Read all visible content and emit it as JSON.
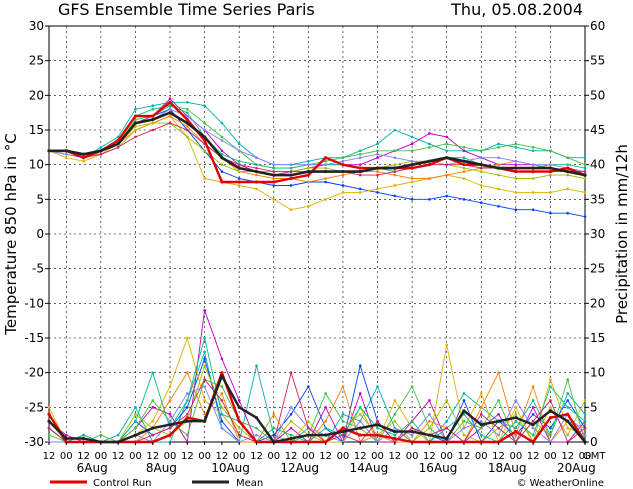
{
  "chart_data": {
    "type": "line",
    "title": "GFS Ensemble Time Series Paris",
    "date": "Thu, 05.08.2004",
    "ylabel_left": "Temperature 850 hPa in °C",
    "ylabel_right": "Precipitation in mm/12h",
    "ylim_left": [
      -30,
      30
    ],
    "ylim_right": [
      0,
      60
    ],
    "yticks_left": [
      "-30",
      "-25",
      "-20",
      "-15",
      "-10",
      "-5",
      "0",
      "5",
      "10",
      "15",
      "20",
      "25",
      "30"
    ],
    "yticks_right": [
      "0",
      "5",
      "10",
      "15",
      "20",
      "25",
      "30",
      "35",
      "40",
      "45",
      "50",
      "55",
      "60"
    ],
    "grid": true,
    "x_hour_labels": [
      "12",
      "00",
      "12",
      "00",
      "12",
      "00",
      "12",
      "00",
      "12",
      "00",
      "12",
      "00",
      "12",
      "00",
      "12",
      "00",
      "12",
      "00",
      "12",
      "00",
      "12",
      "00",
      "12",
      "00",
      "12",
      "00",
      "12",
      "00",
      "12",
      "00",
      "12",
      "00"
    ],
    "x_timezone": "GMT",
    "x_date_labels": [
      {
        "label": "6Aug",
        "at": 2.5
      },
      {
        "label": "8Aug",
        "at": 6.5
      },
      {
        "label": "10Aug",
        "at": 10.5
      },
      {
        "label": "12Aug",
        "at": 14.5
      },
      {
        "label": "14Aug",
        "at": 18.5
      },
      {
        "label": "16Aug",
        "at": 22.5
      },
      {
        "label": "18Aug",
        "at": 26.5
      },
      {
        "label": "20Aug",
        "at": 30.5
      }
    ],
    "legend": [
      {
        "label": "Control Run",
        "color": "#e00000"
      },
      {
        "label": "Mean",
        "color": "#222222"
      }
    ],
    "credit": "© WeatherOnline",
    "mean_temperature": [
      12,
      12,
      11.5,
      12,
      13,
      16,
      16.5,
      17.5,
      16,
      14,
      11,
      9.5,
      9,
      8.5,
      8.5,
      9,
      9,
      9,
      9,
      9.5,
      9.5,
      10,
      10.5,
      11,
      10.5,
      10,
      9.5,
      9.5,
      9.5,
      9.5,
      9,
      8.5
    ],
    "control_temperature": [
      12,
      12,
      11,
      12,
      13.5,
      17,
      17,
      19,
      16.5,
      13.5,
      7.5,
      7.5,
      7.5,
      7.5,
      8,
      8.5,
      11,
      10,
      9.5,
      9.5,
      9.5,
      9.5,
      10,
      11,
      10,
      10,
      9.5,
      9,
      9,
      9,
      9.5,
      8.5
    ],
    "member_temperature": [
      {
        "color": "#00b0b0",
        "values": [
          12,
          12,
          11,
          12.5,
          14,
          18,
          18.5,
          19,
          19,
          18.5,
          16,
          13,
          11,
          10,
          10,
          10.5,
          11,
          11,
          12,
          13,
          15,
          14,
          13,
          12,
          12,
          12,
          13,
          12.5,
          12,
          12,
          11,
          11
        ]
      },
      {
        "color": "#c000c0",
        "values": [
          12,
          11.5,
          11,
          12,
          13,
          16,
          17,
          19.5,
          17,
          15,
          12,
          10,
          9,
          8.5,
          9,
          9.5,
          10,
          10,
          10,
          11,
          12,
          13,
          14.5,
          14,
          12,
          11,
          10,
          10,
          10,
          9.5,
          9,
          8.5
        ]
      },
      {
        "color": "#0040ff",
        "values": [
          12,
          12,
          11.5,
          12,
          13.5,
          17,
          17,
          18,
          15,
          12,
          9,
          8,
          7.5,
          7,
          7,
          7.5,
          7.5,
          7,
          6.5,
          6,
          5.5,
          5,
          5,
          5.5,
          5,
          4.5,
          4,
          3.5,
          3.5,
          3,
          3,
          2.5
        ]
      },
      {
        "color": "#e0b000",
        "values": [
          12,
          11,
          10.5,
          11.5,
          13,
          15.5,
          16,
          17,
          14,
          8,
          7.5,
          7,
          6.5,
          5,
          3.5,
          4,
          5,
          6,
          6,
          6.5,
          7,
          7.5,
          8,
          8.5,
          8,
          7,
          6.5,
          6,
          6,
          6,
          6.5,
          6
        ]
      },
      {
        "color": "#40c040",
        "values": [
          12,
          12,
          11.5,
          12,
          13,
          16.5,
          17,
          18.5,
          18,
          16,
          14,
          12,
          10,
          9.5,
          9.5,
          10,
          10.5,
          11,
          11.5,
          12,
          12,
          12,
          12.5,
          13,
          12.5,
          12,
          12.5,
          13,
          12.5,
          12,
          11,
          10
        ]
      },
      {
        "color": "#ff8000",
        "values": [
          12,
          11.5,
          11,
          12,
          13,
          15,
          16,
          17,
          15.5,
          13,
          11,
          9,
          8.5,
          8,
          8,
          7.5,
          8,
          8.5,
          9,
          9,
          8.5,
          8,
          8,
          8.5,
          9,
          9.5,
          10,
          10.5,
          10,
          9.5,
          9,
          8.5
        ]
      },
      {
        "color": "#a0c000",
        "values": [
          12,
          12,
          11.5,
          11.5,
          12.5,
          15,
          16,
          16,
          14,
          12,
          10,
          9,
          9,
          9,
          9,
          9.5,
          9.5,
          9,
          9,
          9.5,
          10,
          10.5,
          10.5,
          10,
          9.5,
          9,
          8.5,
          8,
          8,
          8.5,
          8.5,
          8
        ]
      },
      {
        "color": "#00c080",
        "values": [
          12,
          12,
          11,
          12,
          13.5,
          17,
          18,
          18.5,
          17.5,
          14,
          11.5,
          10.5,
          10,
          9.5,
          9.5,
          10,
          10,
          10,
          9.5,
          9.5,
          9,
          9.5,
          10,
          11,
          11,
          10,
          9.5,
          9.5,
          9.5,
          10,
          10,
          9.5
        ]
      },
      {
        "color": "#8080ff",
        "values": [
          12,
          11.5,
          11,
          12,
          13,
          16,
          16.5,
          18,
          17,
          15,
          13.5,
          12,
          11,
          10,
          10,
          10,
          10,
          10.5,
          11,
          11.5,
          11,
          10.5,
          10,
          10,
          10.5,
          11,
          11,
          10.5,
          10,
          10,
          9.5,
          9
        ]
      },
      {
        "color": "#d02060",
        "values": [
          12,
          12,
          11,
          11.5,
          12.5,
          14,
          15,
          16,
          15,
          13,
          11,
          10,
          9.5,
          9,
          9,
          9,
          9,
          9,
          8.5,
          8.5,
          9,
          9.5,
          10,
          10,
          10,
          9.5,
          9.5,
          9,
          9,
          9,
          9,
          9
        ]
      }
    ],
    "mean_precip": [
      3,
      0.5,
      0.5,
      0,
      0,
      1,
      2,
      2.5,
      3,
      3,
      9.5,
      5,
      3.5,
      0,
      0.5,
      1,
      1,
      1.5,
      2,
      2.5,
      1.5,
      1.5,
      1,
      0.5,
      4.5,
      2.5,
      3,
      3.5,
      2.5,
      4.5,
      3,
      0
    ],
    "control_precip": [
      4,
      0,
      0,
      0,
      0,
      0,
      0,
      1,
      3.5,
      3,
      10,
      3,
      0,
      0,
      0,
      0,
      0,
      2,
      1,
      1,
      0.5,
      0,
      0,
      0,
      0,
      0,
      0,
      1.5,
      0,
      3.5,
      4,
      0
    ],
    "member_precip": [
      {
        "color": "#00b0b0",
        "values": [
          4,
          0,
          0,
          0,
          1,
          5,
          0,
          0,
          6,
          13,
          2,
          0,
          11,
          1,
          0,
          2,
          0,
          4,
          3,
          8,
          2,
          0,
          0,
          3,
          7,
          5,
          3,
          2,
          6,
          1,
          7,
          4
        ]
      },
      {
        "color": "#c000c0",
        "values": [
          3,
          1,
          0,
          0,
          0,
          2,
          5,
          4,
          0,
          19,
          12,
          6,
          0,
          0,
          2,
          0,
          5,
          0,
          7,
          0,
          0,
          3,
          6,
          0,
          0,
          2,
          4,
          0,
          5,
          0,
          0,
          3
        ]
      },
      {
        "color": "#0040ff",
        "values": [
          2,
          0,
          1,
          0,
          0,
          3,
          1,
          2,
          5,
          12,
          3,
          0,
          0,
          1,
          4,
          8,
          2,
          0,
          11,
          3,
          0,
          2,
          1,
          0,
          6,
          0,
          3,
          1,
          4,
          2,
          6,
          2
        ]
      },
      {
        "color": "#e0b000",
        "values": [
          5,
          0,
          0,
          0,
          0,
          1,
          3,
          8,
          15,
          6,
          4,
          1,
          0,
          0,
          0,
          3,
          0,
          0,
          5,
          0,
          6,
          2,
          0,
          14,
          2,
          7,
          0,
          5,
          0,
          9,
          2,
          1
        ]
      },
      {
        "color": "#40c040",
        "values": [
          1,
          0,
          0,
          1,
          0,
          2,
          6,
          3,
          1,
          9,
          8,
          3,
          2,
          0,
          0,
          1,
          7,
          3,
          2,
          0,
          4,
          8,
          2,
          0,
          3,
          2,
          6,
          0,
          3,
          1,
          9,
          0
        ]
      },
      {
        "color": "#ff8000",
        "values": [
          0,
          0,
          0,
          0,
          0,
          0,
          2,
          6,
          10,
          4,
          7,
          0,
          0,
          4,
          0,
          0,
          3,
          8,
          0,
          1,
          0,
          0,
          3,
          2,
          0,
          5,
          10,
          1,
          8,
          0,
          3,
          2
        ]
      },
      {
        "color": "#a0c000",
        "values": [
          3,
          0,
          0,
          0,
          0,
          4,
          2,
          1,
          3,
          11,
          5,
          2,
          0,
          0,
          3,
          1,
          0,
          2,
          4,
          1,
          3,
          0,
          2,
          6,
          1,
          0,
          2,
          4,
          0,
          5,
          1,
          6
        ]
      },
      {
        "color": "#00c080",
        "values": [
          2,
          0,
          1,
          0,
          0,
          3,
          10,
          2,
          6,
          15,
          4,
          3,
          0,
          2,
          1,
          0,
          2,
          1,
          5,
          2,
          1,
          3,
          0,
          2,
          4,
          1,
          0,
          3,
          1,
          8,
          5,
          3
        ]
      },
      {
        "color": "#8080ff",
        "values": [
          0,
          0,
          0,
          0,
          0,
          1,
          0,
          3,
          7,
          8,
          2,
          0,
          1,
          0,
          5,
          2,
          1,
          0,
          3,
          0,
          2,
          1,
          4,
          0,
          2,
          3,
          1,
          6,
          2,
          0,
          4,
          1
        ]
      },
      {
        "color": "#d02060",
        "values": [
          2,
          0,
          0,
          0,
          0,
          0,
          1,
          2,
          4,
          9,
          6,
          1,
          0,
          0,
          10,
          2,
          0,
          1,
          0,
          3,
          0,
          2,
          1,
          2,
          0,
          4,
          2,
          0,
          3,
          6,
          0,
          2
        ]
      }
    ]
  }
}
